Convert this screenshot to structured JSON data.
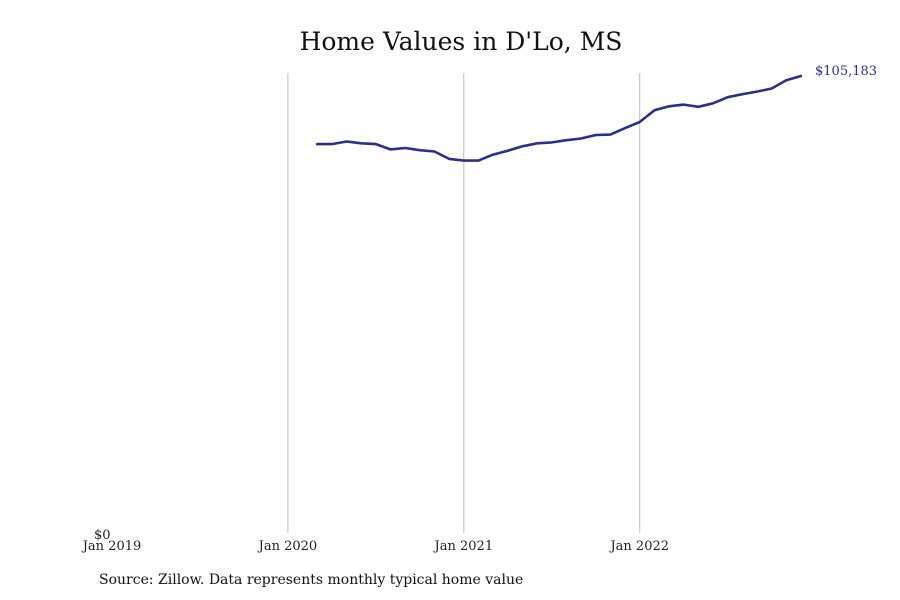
{
  "chart_data": {
    "type": "line",
    "title": "Home Values in D'Lo, MS",
    "source": "Source: Zillow. Data represents monthly typical home value",
    "xlabel": "",
    "ylabel": "",
    "x_ticks": [
      "Jan 2019",
      "Jan 2020",
      "Jan 2021",
      "Jan 2022"
    ],
    "y_tick_label": "$0",
    "ylim": [
      0,
      105183
    ],
    "xlim": [
      "2019-01",
      "2022-12"
    ],
    "grid": "vertical lines at year ticks",
    "line_color": "#2e2e8f",
    "end_label": "$105,183",
    "series": [
      {
        "x": [
          "2020-03",
          "2020-04",
          "2020-05",
          "2020-06",
          "2020-07",
          "2020-08",
          "2020-09",
          "2020-10",
          "2020-11",
          "2020-12",
          "2021-01",
          "2021-02",
          "2021-03",
          "2021-04",
          "2021-05",
          "2021-06",
          "2021-07",
          "2021-08",
          "2021-09",
          "2021-10",
          "2021-11",
          "2021-12",
          "2022-01",
          "2022-02",
          "2022-03",
          "2022-04",
          "2022-05",
          "2022-06",
          "2022-07",
          "2022-08",
          "2022-09",
          "2022-10",
          "2022-11",
          "2022-12"
        ],
        "values": [
          89500,
          89500,
          90100,
          89700,
          89500,
          88300,
          88600,
          88100,
          87800,
          86100,
          85700,
          85700,
          87100,
          88000,
          89000,
          89700,
          89900,
          90400,
          90800,
          91600,
          91700,
          93200,
          94600,
          97300,
          98200,
          98600,
          98100,
          98900,
          100300,
          101000,
          101600,
          102300,
          104200,
          105183
        ]
      }
    ]
  }
}
